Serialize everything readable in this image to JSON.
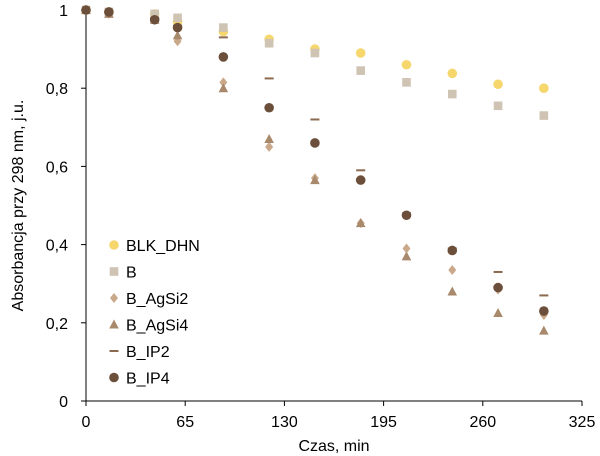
{
  "chart_data": {
    "type": "scatter",
    "title": "",
    "xlabel": "Czas, min",
    "ylabel": "Absorbancja przy 298 nm, j.u.",
    "xlim": [
      0,
      325
    ],
    "ylim": [
      0,
      1
    ],
    "xticks": [
      0,
      65,
      130,
      195,
      260,
      325
    ],
    "xtick_labels": [
      "0",
      "65",
      "130",
      "195",
      "260",
      "325"
    ],
    "yticks": [
      0,
      0.2,
      0.4,
      0.6,
      0.8,
      1
    ],
    "ytick_labels": [
      "0",
      "0,2",
      "0,4",
      "0,6",
      "0,8",
      "1"
    ],
    "grid": false,
    "legend_position": "bottom-left",
    "series": [
      {
        "name": "BLK_DHN",
        "marker": "circle",
        "color": "#F5D76E",
        "x": [
          0,
          15,
          45,
          60,
          90,
          120,
          150,
          180,
          210,
          240,
          270,
          300
        ],
        "y": [
          1.0,
          0.995,
          0.99,
          0.97,
          0.945,
          0.925,
          0.9,
          0.89,
          0.86,
          0.838,
          0.81,
          0.8
        ]
      },
      {
        "name": "B",
        "marker": "square",
        "color": "#CFC3B3",
        "x": [
          0,
          15,
          45,
          60,
          90,
          120,
          150,
          180,
          210,
          240,
          270,
          300
        ],
        "y": [
          1.0,
          0.995,
          0.99,
          0.98,
          0.955,
          0.915,
          0.89,
          0.845,
          0.815,
          0.785,
          0.755,
          0.73
        ]
      },
      {
        "name": "B_AgSi2",
        "marker": "diamond",
        "color": "#C9A98A",
        "x": [
          0,
          15,
          45,
          60,
          90,
          120,
          150,
          180,
          210,
          240,
          270,
          300
        ],
        "y": [
          1.0,
          0.99,
          0.975,
          0.92,
          0.815,
          0.65,
          0.57,
          0.455,
          0.39,
          0.335,
          0.285,
          0.22
        ]
      },
      {
        "name": "B_AgSi4",
        "marker": "triangle",
        "color": "#A9896C",
        "x": [
          0,
          15,
          45,
          60,
          90,
          120,
          150,
          180,
          210,
          240,
          270,
          300
        ],
        "y": [
          1.0,
          0.99,
          0.975,
          0.935,
          0.8,
          0.67,
          0.565,
          0.455,
          0.37,
          0.28,
          0.225,
          0.18
        ]
      },
      {
        "name": "B_IP2",
        "marker": "dash",
        "color": "#8C6A4F",
        "x": [
          0,
          15,
          45,
          60,
          90,
          120,
          150,
          180,
          210,
          240,
          270,
          300
        ],
        "y": [
          1.0,
          0.995,
          0.98,
          0.96,
          0.93,
          0.825,
          0.72,
          0.59,
          0.48,
          0.39,
          0.33,
          0.27
        ]
      },
      {
        "name": "B_IP4",
        "marker": "circle",
        "color": "#6B4F3A",
        "x": [
          0,
          15,
          45,
          60,
          90,
          120,
          150,
          180,
          210,
          240,
          270,
          300
        ],
        "y": [
          1.0,
          0.995,
          0.975,
          0.955,
          0.88,
          0.75,
          0.66,
          0.565,
          0.475,
          0.385,
          0.29,
          0.23
        ]
      }
    ]
  }
}
